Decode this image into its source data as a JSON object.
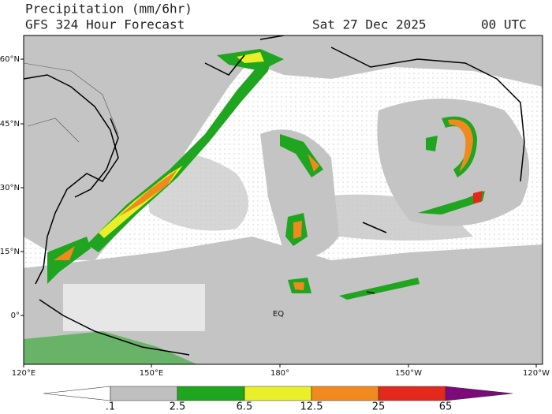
{
  "header": {
    "title": "Precipitation (mm/6hr)",
    "subtitle": "GFS 324 Hour Forecast",
    "date": "Sat 27 Dec 2025",
    "time": "00 UTC"
  },
  "map": {
    "lat_labels": [
      "60°N",
      "45°N",
      "30°N",
      "15°N",
      "0°"
    ],
    "lon_labels": [
      "120°E",
      "150°E",
      "180°",
      "150°W",
      "120°W"
    ],
    "equator_label": "EQ"
  },
  "colorbar": {
    "colors": [
      "#ffffff",
      "#c0c0c0",
      "#1fa51f",
      "#e9f02a",
      "#f08a1e",
      "#e3281c",
      "#7d0a7a"
    ],
    "labels": [
      ".1",
      "2.5",
      "6.5",
      "12.5",
      "25",
      "65"
    ]
  }
}
